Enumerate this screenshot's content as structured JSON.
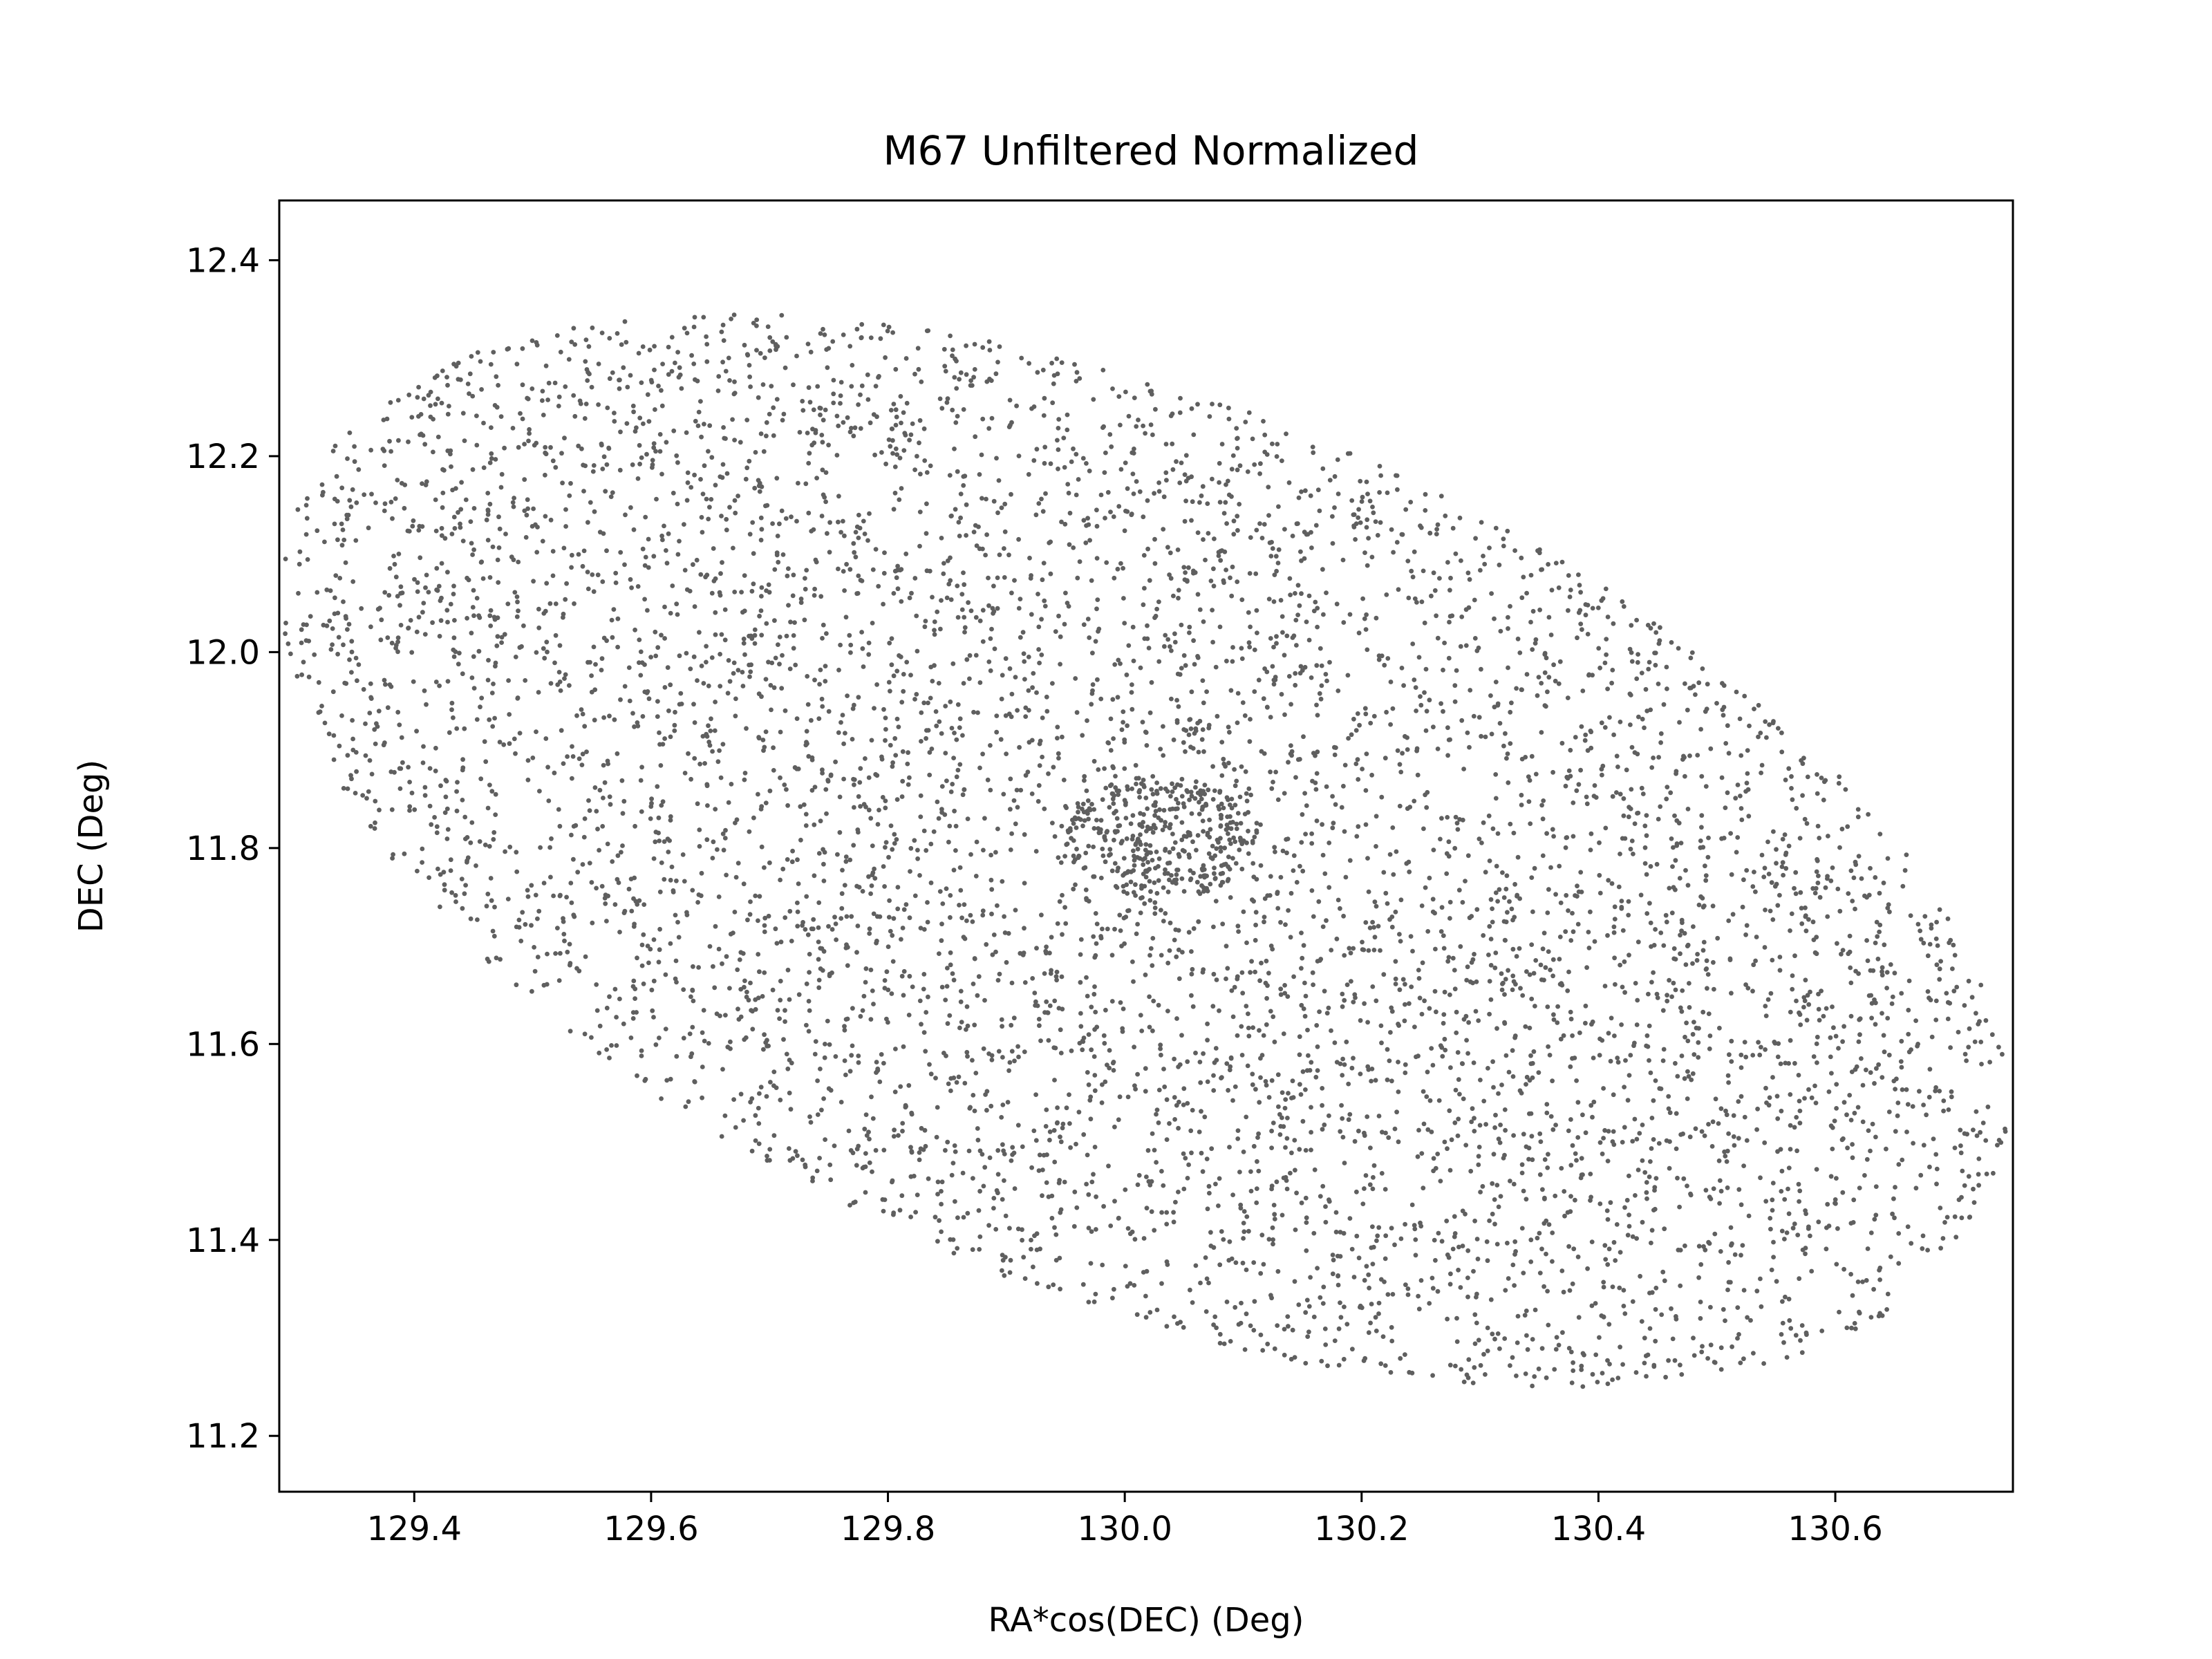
{
  "chart_data": {
    "type": "scatter",
    "title": "M67 Unfiltered Normalized",
    "xlabel": "RA*cos(DEC) (Deg)",
    "ylabel": "DEC (Deg)",
    "xlim": [
      129.286,
      130.75
    ],
    "ylim": [
      11.143,
      12.461
    ],
    "xticks": [
      129.4,
      129.6,
      129.8,
      130.0,
      130.2,
      130.4,
      130.6
    ],
    "xtick_labels": [
      "129.4",
      "129.6",
      "129.8",
      "130.0",
      "130.2",
      "130.4",
      "130.6"
    ],
    "yticks": [
      11.2,
      11.4,
      11.6,
      11.8,
      12.0,
      12.2,
      12.4
    ],
    "ytick_labels": [
      "11.2",
      "11.4",
      "11.6",
      "11.8",
      "12.0",
      "12.2",
      "12.4"
    ],
    "grid": false,
    "marker_color": "#5f5f5f",
    "series": [
      {
        "distribution": {
          "shape": "rotated-ellipse",
          "center": [
            130.017,
            11.797
          ],
          "extreme_points": {
            "leftmost": [
              129.355,
              12.05
            ],
            "rightmost": [
              130.68,
              11.55
            ],
            "topmost": [
              129.7,
              12.395
            ],
            "bottommost": [
              130.32,
              11.2
            ]
          },
          "semi_major": 0.8,
          "semi_minor": 0.44,
          "rotation_deg": -29.5,
          "core": {
            "center": [
              130.03,
              11.81
            ],
            "radius": 0.08
          },
          "approx_count": 6500
        }
      }
    ]
  }
}
